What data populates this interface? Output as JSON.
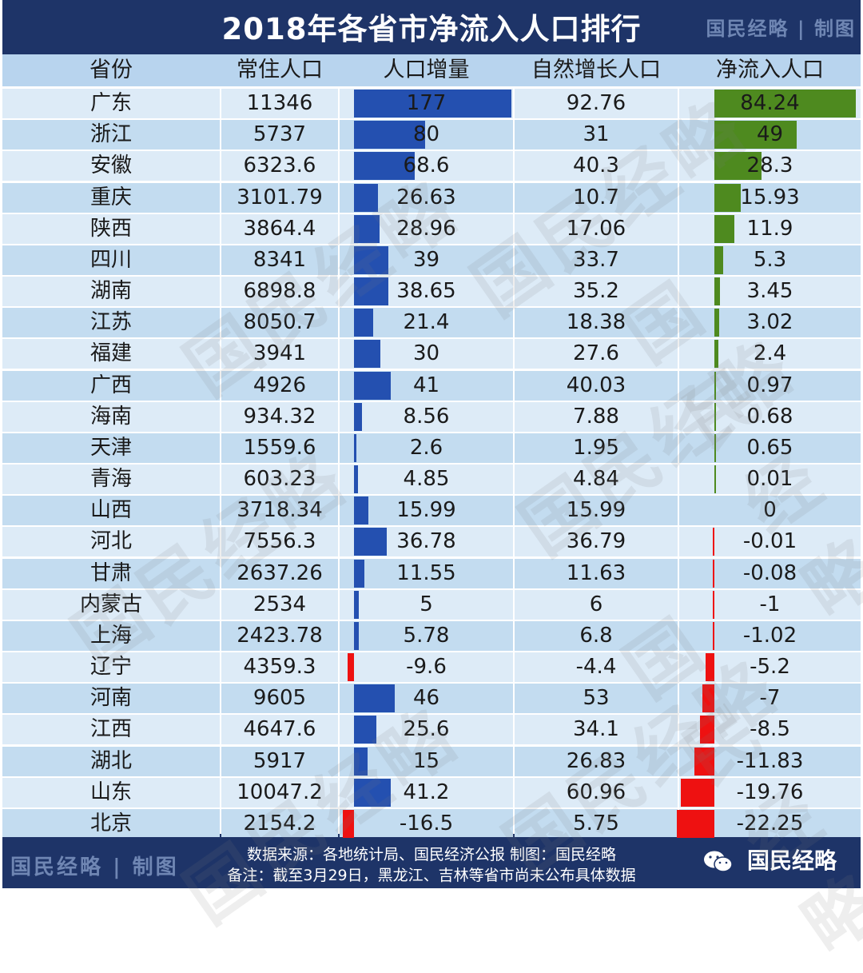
{
  "title": "2018年各省市净流入人口排行",
  "brand": "国民经略",
  "brand_sep": "|",
  "brand_suffix": "制图",
  "colors": {
    "frame": "#1e3468",
    "header_bg": "#b8d4ee",
    "row_even": "#ddebf7",
    "row_odd": "#c3dcf0",
    "bar_blue": "#2450b0",
    "bar_green": "#4e8a1f",
    "bar_red": "#ee1111"
  },
  "chart_data": {
    "type": "table",
    "columns": [
      "省份",
      "常住人口",
      "人口增量",
      "自然增长人口",
      "净流入人口"
    ],
    "rows": [
      [
        "广东",
        "11346",
        "177",
        "92.76",
        "84.24"
      ],
      [
        "浙江",
        "5737",
        "80",
        "31",
        "49"
      ],
      [
        "安徽",
        "6323.6",
        "68.6",
        "40.3",
        "28.3"
      ],
      [
        "重庆",
        "3101.79",
        "26.63",
        "10.7",
        "15.93"
      ],
      [
        "陕西",
        "3864.4",
        "28.96",
        "17.06",
        "11.9"
      ],
      [
        "四川",
        "8341",
        "39",
        "33.7",
        "5.3"
      ],
      [
        "湖南",
        "6898.8",
        "38.65",
        "35.2",
        "3.45"
      ],
      [
        "江苏",
        "8050.7",
        "21.4",
        "18.38",
        "3.02"
      ],
      [
        "福建",
        "3941",
        "30",
        "27.6",
        "2.4"
      ],
      [
        "广西",
        "4926",
        "41",
        "40.03",
        "0.97"
      ],
      [
        "海南",
        "934.32",
        "8.56",
        "7.88",
        "0.68"
      ],
      [
        "天津",
        "1559.6",
        "2.6",
        "1.95",
        "0.65"
      ],
      [
        "青海",
        "603.23",
        "4.85",
        "4.84",
        "0.01"
      ],
      [
        "山西",
        "3718.34",
        "15.99",
        "15.99",
        "0"
      ],
      [
        "河北",
        "7556.3",
        "36.78",
        "36.79",
        "-0.01"
      ],
      [
        "甘肃",
        "2637.26",
        "11.55",
        "11.63",
        "-0.08"
      ],
      [
        "内蒙古",
        "2534",
        "5",
        "6",
        "-1"
      ],
      [
        "上海",
        "2423.78",
        "5.78",
        "6.8",
        "-1.02"
      ],
      [
        "辽宁",
        "4359.3",
        "-9.6",
        "-4.4",
        "-5.2"
      ],
      [
        "河南",
        "9605",
        "46",
        "53",
        "-7"
      ],
      [
        "江西",
        "4647.6",
        "25.6",
        "34.1",
        "-8.5"
      ],
      [
        "湖北",
        "5917",
        "15",
        "26.83",
        "-11.83"
      ],
      [
        "山东",
        "10047.2",
        "41.2",
        "60.96",
        "-19.76"
      ],
      [
        "北京",
        "2154.2",
        "-16.5",
        "5.75",
        "-22.25"
      ]
    ],
    "bar_columns": [
      "人口增量",
      "净流入人口"
    ],
    "increase_scale_max": 177,
    "net_scale_max": 84.24
  },
  "footer": {
    "source": "数据来源：各地统计局、国民经济公报  制图：国民经略",
    "note": "备注：截至3月29日，黑龙江、吉林等省市尚未公布具体数据",
    "wechat_name": "国民经略"
  }
}
